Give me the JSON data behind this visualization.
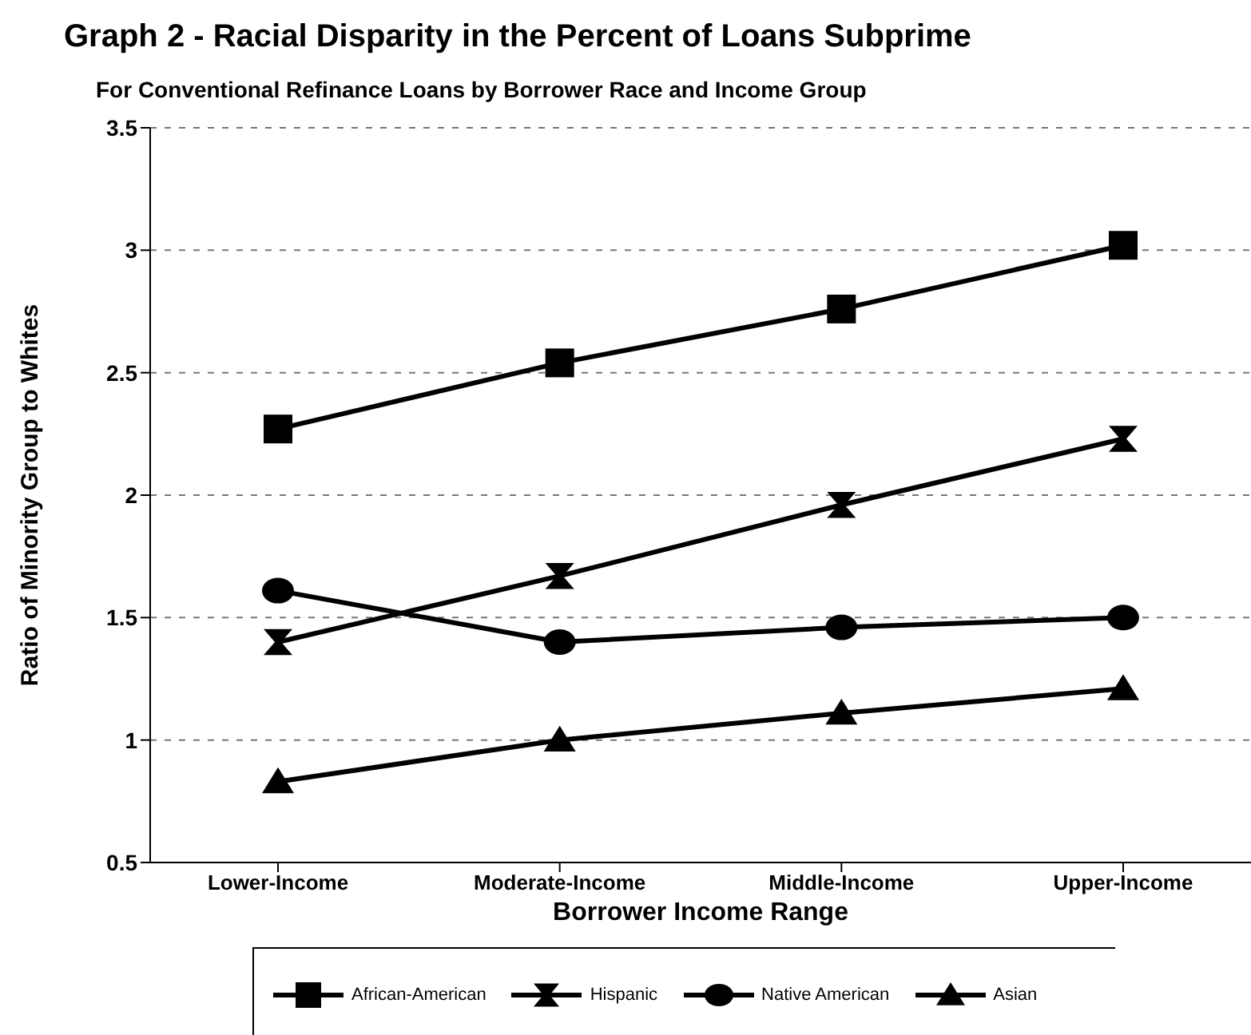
{
  "chart_data": {
    "type": "line",
    "title": "Graph 2 - Racial Disparity in the Percent of Loans Subprime",
    "subtitle": "For Conventional Refinance Loans by Borrower Race and Income Group",
    "xlabel": "Borrower Income Range",
    "ylabel": "Ratio of Minority Group to Whites",
    "categories": [
      "Lower-Income",
      "Moderate-Income",
      "Middle-Income",
      "Upper-Income"
    ],
    "series": [
      {
        "name": "African-American",
        "color": "#000000",
        "marker": "square",
        "values": [
          2.27,
          2.54,
          2.76,
          3.02
        ]
      },
      {
        "name": "Hispanic",
        "color": "#000000",
        "marker": "cross",
        "values": [
          1.4,
          1.67,
          1.96,
          2.23
        ]
      },
      {
        "name": "Native American",
        "color": "#000000",
        "marker": "circle",
        "values": [
          1.61,
          1.4,
          1.46,
          1.5
        ]
      },
      {
        "name": "Asian",
        "color": "#000000",
        "marker": "triangle",
        "values": [
          0.83,
          1.0,
          1.11,
          1.21
        ]
      }
    ],
    "ylim": [
      0.5,
      3.5
    ],
    "yticks": [
      0.5,
      1,
      1.5,
      2,
      2.5,
      3,
      3.5
    ],
    "grid": "y",
    "legend": "bottom",
    "line_style": "solid"
  }
}
